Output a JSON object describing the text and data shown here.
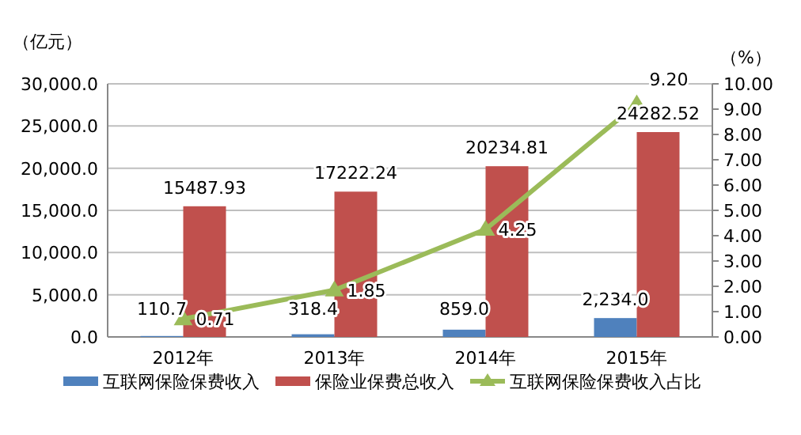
{
  "chart_data": {
    "type": "bar",
    "ylabel": "（亿元）",
    "y2label": "（%）",
    "categories": [
      "2012年",
      "2013年",
      "2014年",
      "2015年"
    ],
    "series": [
      {
        "name": "互联网保险保费收入",
        "color": "#4f81bd",
        "values": [
          110.7,
          318.4,
          859.0,
          2234.0
        ],
        "value_labels": [
          "110.7",
          "318.4",
          "859.0",
          "2,234.0"
        ]
      },
      {
        "name": "保险业保费总收入",
        "color": "#c0504d",
        "values": [
          15487.93,
          17222.24,
          20234.81,
          24282.52
        ],
        "value_labels": [
          "15487.93",
          "17222.24",
          "20234.81",
          "24282.52"
        ]
      },
      {
        "name": "互联网保险保费收入占比",
        "type": "line",
        "axis": "y2",
        "color": "#9bbb59",
        "marker": "triangle",
        "values": [
          0.71,
          1.85,
          4.25,
          9.2
        ],
        "value_labels": [
          "0.71",
          "1.85",
          "4.25",
          "9.20"
        ]
      }
    ],
    "ylim": [
      0,
      30000
    ],
    "yticks": [
      {
        "value": 0,
        "label": "0.0"
      },
      {
        "value": 5000,
        "label": "5,000.0"
      },
      {
        "value": 10000,
        "label": "10,000.0"
      },
      {
        "value": 15000,
        "label": "15,000.0"
      },
      {
        "value": 20000,
        "label": "20,000.0"
      },
      {
        "value": 25000,
        "label": "25,000.0"
      },
      {
        "value": 30000,
        "label": "30,000.0"
      }
    ],
    "y2lim": [
      0,
      10
    ],
    "y2ticks": [
      {
        "value": 0,
        "label": "0.00"
      },
      {
        "value": 1,
        "label": "1.00"
      },
      {
        "value": 2,
        "label": "2.00"
      },
      {
        "value": 3,
        "label": "3.00"
      },
      {
        "value": 4,
        "label": "4.00"
      },
      {
        "value": 5,
        "label": "5.00"
      },
      {
        "value": 6,
        "label": "6.00"
      },
      {
        "value": 7,
        "label": "7.00"
      },
      {
        "value": 8,
        "label": "8.00"
      },
      {
        "value": 9,
        "label": "9.00"
      },
      {
        "value": 10,
        "label": "10.00"
      }
    ],
    "grid": "y",
    "legend": "bottom"
  }
}
